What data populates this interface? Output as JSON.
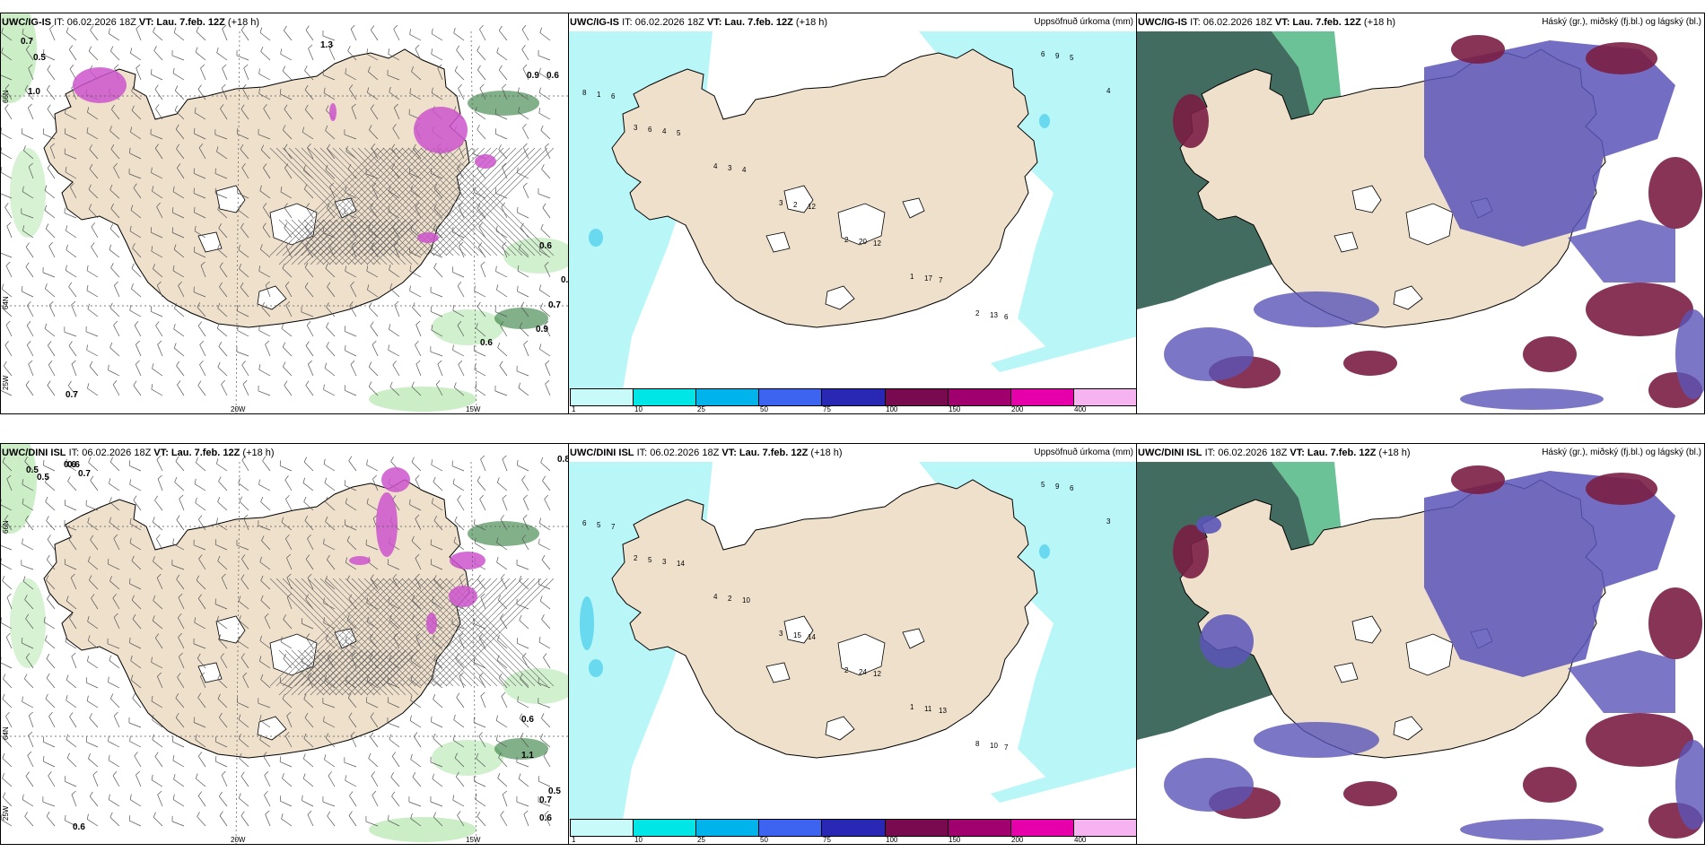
{
  "rows": [
    {
      "panels": [
        {
          "model": "UWC/IG-IS",
          "it": "IT: 06.02.2026 18Z",
          "vt_label": "VT:",
          "vt": "Lau. 7.feb. 12Z",
          "lead": "(+18 h)",
          "title": ""
        },
        {
          "model": "UWC/IG-IS",
          "it": "IT: 06.02.2026 18Z",
          "vt_label": "VT:",
          "vt": "Lau. 7.feb. 12Z",
          "lead": "(+18 h)",
          "title": "Uppsöfnuð úrkoma (mm)"
        },
        {
          "model": "UWC/IG-IS",
          "it": "IT: 06.02.2026 18Z",
          "vt_label": "VT:",
          "vt": "Lau. 7.feb. 12Z",
          "lead": "(+18 h)",
          "title": "Háský (gr.), miðský (fj.bl.) og lágský (bl.)"
        }
      ]
    },
    {
      "panels": [
        {
          "model": "UWC/DINI ISL",
          "it": "IT: 06.02.2026 18Z",
          "vt_label": "VT:",
          "vt": "Lau. 7.feb. 12Z",
          "lead": "(+18 h)",
          "title": ""
        },
        {
          "model": "UWC/DINI ISL",
          "it": "IT: 06.02.2026 18Z",
          "vt_label": "VT:",
          "vt": "Lau. 7.feb. 12Z",
          "lead": "(+18 h)",
          "title": "Uppsöfnuð úrkoma (mm)"
        },
        {
          "model": "UWC/DINI ISL",
          "it": "IT: 06.02.2026 18Z",
          "vt_label": "VT:",
          "vt": "Lau. 7.feb. 12Z",
          "lead": "(+18 h)",
          "title": "Háský (gr.), miðský (fj.bl.) og lágský (bl.)"
        }
      ]
    }
  ],
  "axis_labels": {
    "lon_20w": "20W",
    "lon_15w": "15W",
    "lat_66n": "66N",
    "lat_64n": "64N",
    "lat_25w": "25W"
  },
  "colorbar": {
    "ticks": [
      "1",
      "10",
      "25",
      "50",
      "75",
      "100",
      "150",
      "200",
      "400"
    ],
    "colors": [
      "#c8fafa",
      "#00e6e6",
      "#00b4eb",
      "#3c64f0",
      "#2828b4",
      "#780a50",
      "#a0006e",
      "#e600aa",
      "#f5b4f0"
    ]
  },
  "colors": {
    "land": "#efe0cc",
    "precip_light": "#b8f6f8",
    "snow_white": "#ffffff",
    "green_light": "#c6ecc0",
    "green_dark": "#2e7d3a",
    "magenta": "#cc55cc",
    "cloud_high": "#2e5c4e",
    "cloud_mid": "#5a55b8",
    "cloud_low": "#7a1e44"
  },
  "numbers": {
    "panel1_top": [
      "0.7",
      "0.5",
      "1.0",
      "1.3",
      "0.9",
      "0.6",
      "0.6",
      "0.7",
      "0.9",
      "0.6",
      "0.7",
      "0.6"
    ],
    "panel2_top": [
      "6",
      "5",
      "4",
      "12",
      "12",
      "7",
      "6",
      "5",
      "1",
      "4",
      "3",
      "2",
      "20",
      "17",
      "13",
      "9",
      "8",
      "6",
      "4",
      "3",
      "2",
      "1",
      "2",
      "6",
      "4",
      "3"
    ],
    "panel1_bot": [
      "0.5",
      "0.6",
      "0.7",
      "0.5",
      "0.6",
      "0.8",
      "0.6",
      "1.1",
      "0.5",
      "0.7",
      "0.6",
      "0.6"
    ],
    "panel2_bot": [
      "7",
      "14",
      "10",
      "14",
      "12",
      "13",
      "7",
      "6",
      "5",
      "3",
      "2",
      "15",
      "24",
      "11",
      "10",
      "9",
      "6",
      "5",
      "4",
      "3",
      "2",
      "1",
      "8",
      "5",
      "3",
      "2"
    ]
  }
}
